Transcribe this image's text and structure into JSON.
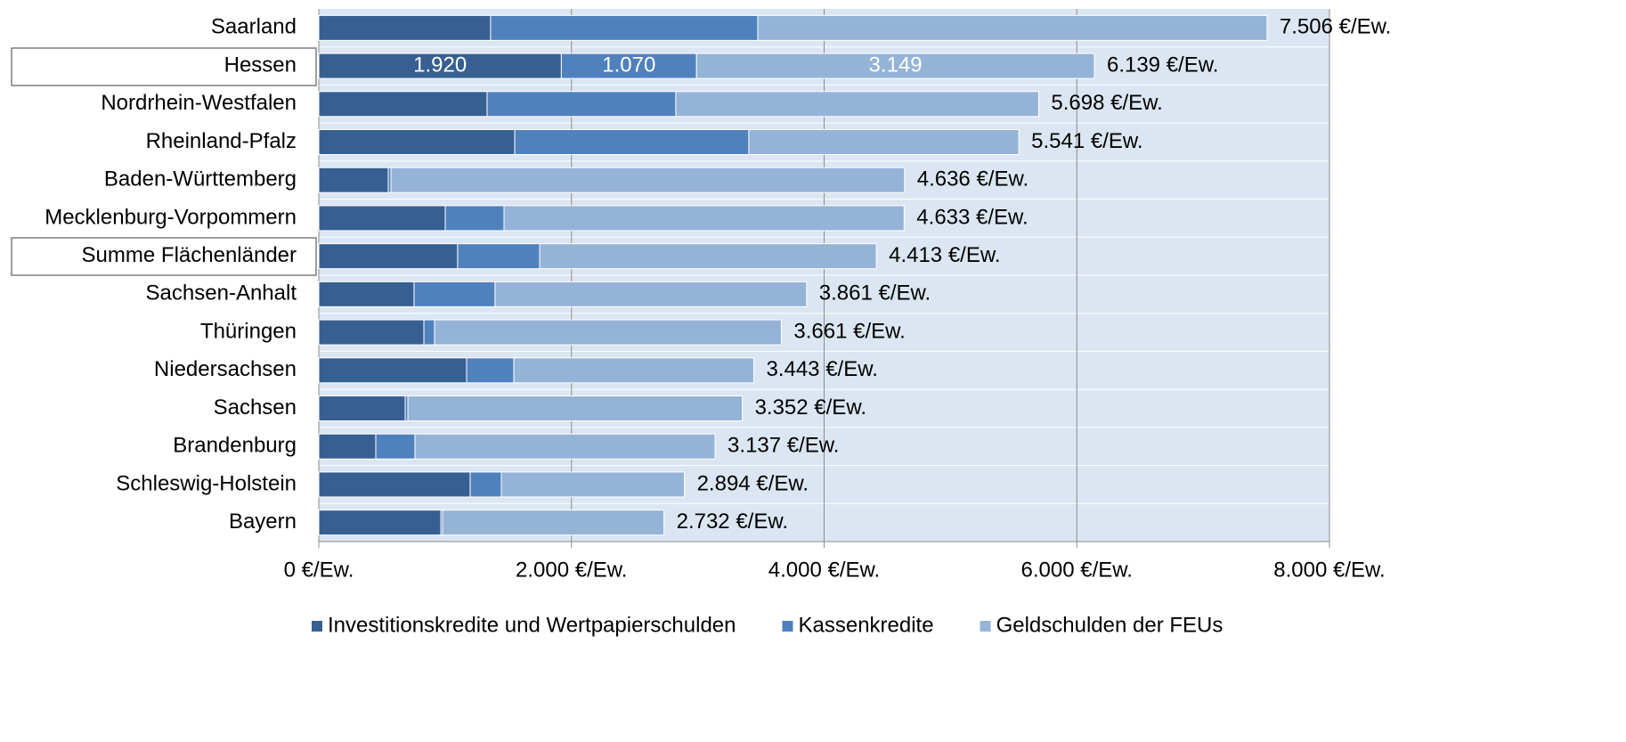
{
  "chart_data": {
    "type": "stacked_barh",
    "categories": [
      "Saarland",
      "Hessen",
      "Nordrhein-Westfalen",
      "Rheinland-Pfalz",
      "Baden-Württemberg",
      "Mecklenburg-Vorpommern",
      "Summe Flächenländer",
      "Sachsen-Anhalt",
      "Thüringen",
      "Niedersachsen",
      "Sachsen",
      "Brandenburg",
      "Schleswig-Holstein",
      "Bayern"
    ],
    "series": [
      {
        "name": "Investitionskredite und Wertpapierschulden",
        "color": "#375f92",
        "values": [
          1360,
          1920,
          1332,
          1551,
          550,
          1001,
          1099,
          754,
          832,
          1170,
          684,
          451,
          1198,
          966
        ],
        "value_labels": [
          null,
          "1.920",
          null,
          null,
          null,
          null,
          null,
          null,
          null,
          null,
          null,
          null,
          null,
          null
        ]
      },
      {
        "name": "Kassenkredite",
        "color": "#4f81bd",
        "values": [
          2115,
          1070,
          1494,
          1853,
          21,
          465,
          649,
          641,
          84,
          374,
          21,
          310,
          247,
          14
        ],
        "value_labels": [
          null,
          "1.070",
          null,
          null,
          null,
          null,
          null,
          null,
          null,
          null,
          null,
          null,
          null,
          null
        ]
      },
      {
        "name": "Geldschulden der FEUs",
        "color": "#95b3d7",
        "values": [
          4031,
          3149,
          2872,
          2137,
          4065,
          3167,
          2665,
          2466,
          2745,
          1899,
          2647,
          2376,
          1449,
          1752
        ],
        "value_labels": [
          null,
          "3.149",
          null,
          null,
          null,
          null,
          null,
          null,
          null,
          null,
          null,
          null,
          null,
          null
        ]
      }
    ],
    "total_labels": [
      "7.506 €/Ew.",
      "6.139 €/Ew.",
      "5.698 €/Ew.",
      "5.541 €/Ew.",
      "4.636 €/Ew.",
      "4.633 €/Ew.",
      "4.413 €/Ew.",
      "3.861 €/Ew.",
      "3.661 €/Ew.",
      "3.443 €/Ew.",
      "3.352 €/Ew.",
      "3.137 €/Ew.",
      "2.894 €/Ew.",
      "2.732 €/Ew."
    ],
    "xlim": [
      0,
      8000
    ],
    "xticks": [
      {
        "value": 0,
        "label": "0 €/Ew."
      },
      {
        "value": 2000,
        "label": "2.000 €/Ew."
      },
      {
        "value": 4000,
        "label": "4.000 €/Ew."
      },
      {
        "value": 6000,
        "label": "6.000 €/Ew."
      },
      {
        "value": 8000,
        "label": "8.000 €/Ew."
      }
    ],
    "grid": true,
    "legend": "bottom"
  }
}
